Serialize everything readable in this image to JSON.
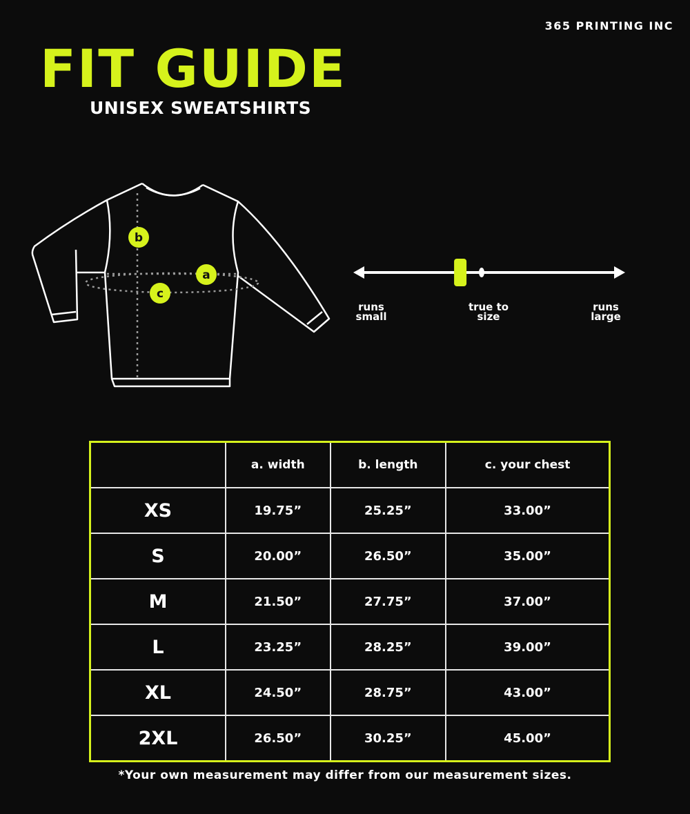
{
  "brand": "365 PRINTING INC",
  "title": "FIT GUIDE",
  "subtitle": "UNISEX SWEATSHIRTS",
  "accent_color": "#d6f21c",
  "diagram": {
    "markers": [
      "a",
      "b",
      "c"
    ]
  },
  "fit_scale": {
    "left_label": "runs small",
    "center_label": "true to size",
    "right_label": "runs large",
    "indicator_position": 0.39
  },
  "table": {
    "headers": [
      "",
      "a. width",
      "b. length",
      "c. your chest"
    ],
    "rows": [
      [
        "XS",
        "19.75”",
        "25.25”",
        "33.00”"
      ],
      [
        "S",
        "20.00”",
        "26.50”",
        "35.00”"
      ],
      [
        "M",
        "21.50”",
        "27.75”",
        "37.00”"
      ],
      [
        "L",
        "23.25”",
        "28.25”",
        "39.00”"
      ],
      [
        "XL",
        "24.50”",
        "28.75”",
        "43.00”"
      ],
      [
        "2XL",
        "26.50”",
        "30.25”",
        "45.00”"
      ]
    ]
  },
  "footnote": "*Your own measurement may differ from our measurement sizes."
}
